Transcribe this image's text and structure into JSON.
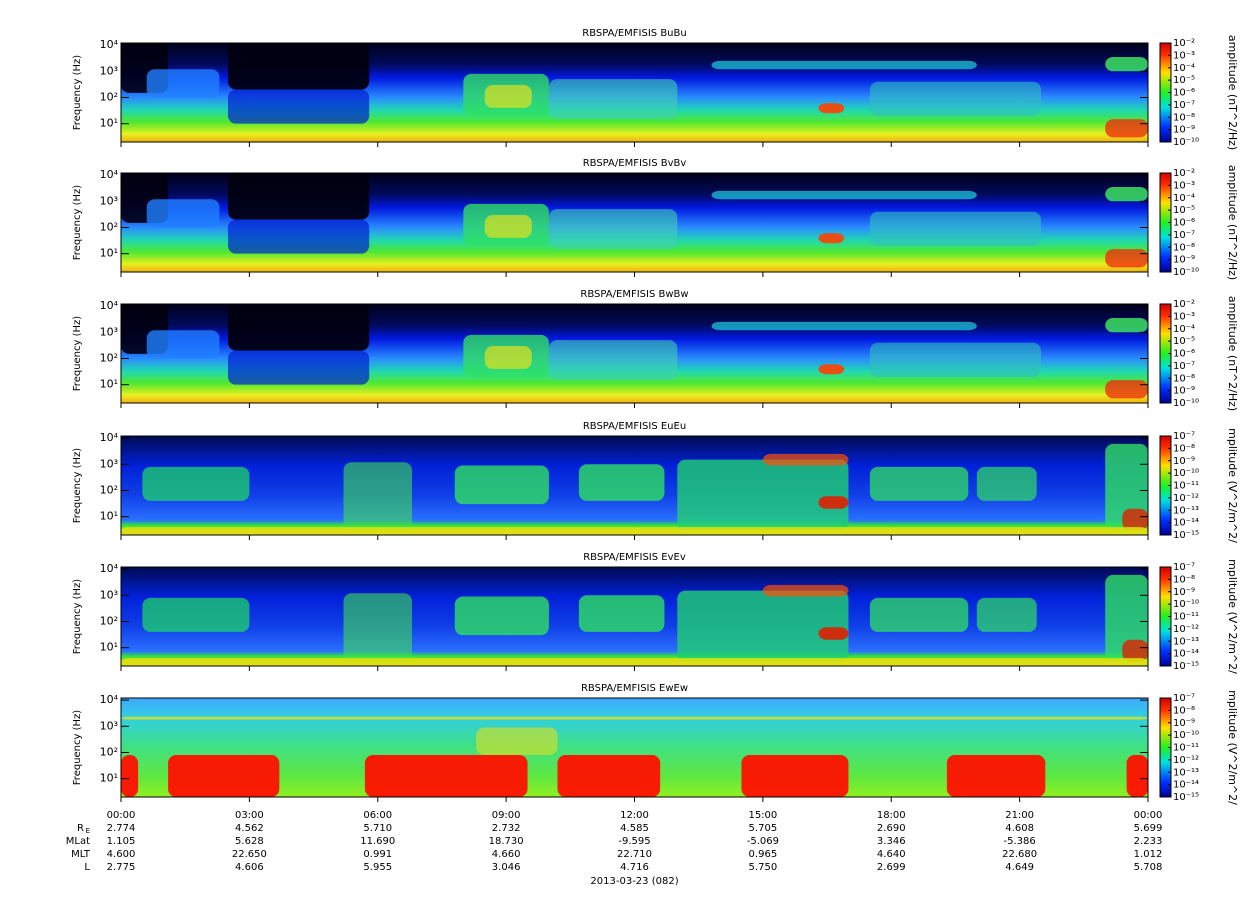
{
  "chart_data": [
    {
      "type": "spectrogram",
      "title": "RBSPA/EMFISIS  BuBu",
      "ylabel": "Frequency (Hz)",
      "log_y": true,
      "ylim": [
        2,
        12000
      ],
      "yticks": [
        {
          "value": 10,
          "label": "10¹"
        },
        {
          "value": 100,
          "label": "10²"
        },
        {
          "value": 1000,
          "label": "10³"
        },
        {
          "value": 10000,
          "label": "10⁴"
        }
      ],
      "colorbar": {
        "label": "amplitude (nT^2/Hz)",
        "lim": [
          1e-10,
          0.01
        ],
        "ticks": [
          {
            "value": 0.01,
            "label": "10⁻²"
          },
          {
            "value": 0.001,
            "label": "10⁻³"
          },
          {
            "value": 0.0001,
            "label": "10⁻⁴"
          },
          {
            "value": 1e-05,
            "label": "10⁻⁵"
          },
          {
            "value": 1e-06,
            "label": "10⁻⁶"
          },
          {
            "value": 1e-07,
            "label": "10⁻⁷"
          },
          {
            "value": 1e-08,
            "label": "10⁻⁸"
          },
          {
            "value": 1e-09,
            "label": "10⁻⁹"
          },
          {
            "value": 1e-10,
            "label": "10⁻¹⁰"
          }
        ]
      }
    },
    {
      "type": "spectrogram",
      "title": "RBSPA/EMFISIS  BvBv",
      "ylabel": "Frequency (Hz)",
      "log_y": true,
      "ylim": [
        2,
        12000
      ],
      "yticks": [
        {
          "value": 10,
          "label": "10¹"
        },
        {
          "value": 100,
          "label": "10²"
        },
        {
          "value": 1000,
          "label": "10³"
        },
        {
          "value": 10000,
          "label": "10⁴"
        }
      ],
      "colorbar": {
        "label": "amplitude (nT^2/Hz)",
        "lim": [
          1e-10,
          0.01
        ],
        "ticks": [
          {
            "value": 0.01,
            "label": "10⁻²"
          },
          {
            "value": 0.001,
            "label": "10⁻³"
          },
          {
            "value": 0.0001,
            "label": "10⁻⁴"
          },
          {
            "value": 1e-05,
            "label": "10⁻⁵"
          },
          {
            "value": 1e-06,
            "label": "10⁻⁶"
          },
          {
            "value": 1e-07,
            "label": "10⁻⁷"
          },
          {
            "value": 1e-08,
            "label": "10⁻⁸"
          },
          {
            "value": 1e-09,
            "label": "10⁻⁹"
          },
          {
            "value": 1e-10,
            "label": "10⁻¹⁰"
          }
        ]
      }
    },
    {
      "type": "spectrogram",
      "title": "RBSPA/EMFISIS  BwBw",
      "ylabel": "Frequency (Hz)",
      "log_y": true,
      "ylim": [
        2,
        12000
      ],
      "yticks": [
        {
          "value": 10,
          "label": "10¹"
        },
        {
          "value": 100,
          "label": "10²"
        },
        {
          "value": 1000,
          "label": "10³"
        },
        {
          "value": 10000,
          "label": "10⁴"
        }
      ],
      "colorbar": {
        "label": "amplitude (nT^2/Hz)",
        "lim": [
          1e-10,
          0.01
        ],
        "ticks": [
          {
            "value": 0.01,
            "label": "10⁻²"
          },
          {
            "value": 0.001,
            "label": "10⁻³"
          },
          {
            "value": 0.0001,
            "label": "10⁻⁴"
          },
          {
            "value": 1e-05,
            "label": "10⁻⁵"
          },
          {
            "value": 1e-06,
            "label": "10⁻⁶"
          },
          {
            "value": 1e-07,
            "label": "10⁻⁷"
          },
          {
            "value": 1e-08,
            "label": "10⁻⁸"
          },
          {
            "value": 1e-09,
            "label": "10⁻⁹"
          },
          {
            "value": 1e-10,
            "label": "10⁻¹⁰"
          }
        ]
      }
    },
    {
      "type": "spectrogram",
      "title": "RBSPA/EMFISIS  EuEu",
      "ylabel": "Frequency (Hz)",
      "log_y": true,
      "ylim": [
        2,
        12000
      ],
      "yticks": [
        {
          "value": 10,
          "label": "10¹"
        },
        {
          "value": 100,
          "label": "10²"
        },
        {
          "value": 1000,
          "label": "10³"
        },
        {
          "value": 10000,
          "label": "10⁴"
        }
      ],
      "colorbar": {
        "label": "mplitude (V^2/m^2/",
        "lim": [
          1e-15,
          1e-07
        ],
        "ticks": [
          {
            "value": 1e-07,
            "label": "10⁻⁷"
          },
          {
            "value": 1e-08,
            "label": "10⁻⁸"
          },
          {
            "value": 1e-09,
            "label": "10⁻⁹"
          },
          {
            "value": 1e-10,
            "label": "10⁻¹⁰"
          },
          {
            "value": 1e-11,
            "label": "10⁻¹¹"
          },
          {
            "value": 1e-12,
            "label": "10⁻¹²"
          },
          {
            "value": 1e-13,
            "label": "10⁻¹³"
          },
          {
            "value": 1e-14,
            "label": "10⁻¹⁴"
          },
          {
            "value": 1e-15,
            "label": "10⁻¹⁵"
          }
        ]
      }
    },
    {
      "type": "spectrogram",
      "title": "RBSPA/EMFISIS  EvEv",
      "ylabel": "Frequency (Hz)",
      "log_y": true,
      "ylim": [
        2,
        12000
      ],
      "yticks": [
        {
          "value": 10,
          "label": "10¹"
        },
        {
          "value": 100,
          "label": "10²"
        },
        {
          "value": 1000,
          "label": "10³"
        },
        {
          "value": 10000,
          "label": "10⁴"
        }
      ],
      "colorbar": {
        "label": "mplitude (V^2/m^2/",
        "lim": [
          1e-15,
          1e-07
        ],
        "ticks": [
          {
            "value": 1e-07,
            "label": "10⁻⁷"
          },
          {
            "value": 1e-08,
            "label": "10⁻⁸"
          },
          {
            "value": 1e-09,
            "label": "10⁻⁹"
          },
          {
            "value": 1e-10,
            "label": "10⁻¹⁰"
          },
          {
            "value": 1e-11,
            "label": "10⁻¹¹"
          },
          {
            "value": 1e-12,
            "label": "10⁻¹²"
          },
          {
            "value": 1e-13,
            "label": "10⁻¹³"
          },
          {
            "value": 1e-14,
            "label": "10⁻¹⁴"
          },
          {
            "value": 1e-15,
            "label": "10⁻¹⁵"
          }
        ]
      }
    },
    {
      "type": "spectrogram",
      "title": "RBSPA/EMFISIS  EwEw",
      "ylabel": "Frequency (Hz)",
      "log_y": true,
      "ylim": [
        2,
        12000
      ],
      "yticks": [
        {
          "value": 10,
          "label": "10¹"
        },
        {
          "value": 100,
          "label": "10²"
        },
        {
          "value": 1000,
          "label": "10³"
        },
        {
          "value": 10000,
          "label": "10⁴"
        }
      ],
      "colorbar": {
        "label": "mplitude (V^2/m^2/",
        "lim": [
          1e-15,
          1e-07
        ],
        "ticks": [
          {
            "value": 1e-07,
            "label": "10⁻⁷"
          },
          {
            "value": 1e-08,
            "label": "10⁻⁸"
          },
          {
            "value": 1e-09,
            "label": "10⁻⁹"
          },
          {
            "value": 1e-10,
            "label": "10⁻¹⁰"
          },
          {
            "value": 1e-11,
            "label": "10⁻¹¹"
          },
          {
            "value": 1e-12,
            "label": "10⁻¹²"
          },
          {
            "value": 1e-13,
            "label": "10⁻¹³"
          },
          {
            "value": 1e-14,
            "label": "10⁻¹⁴"
          },
          {
            "value": 1e-15,
            "label": "10⁻¹⁵"
          }
        ]
      }
    },
    {
      "type": "time-axis",
      "xlim": [
        0,
        24
      ],
      "xticks": [
        {
          "value": 0,
          "label": "00:00"
        },
        {
          "value": 3,
          "label": "03:00"
        },
        {
          "value": 6,
          "label": "06:00"
        },
        {
          "value": 9,
          "label": "09:00"
        },
        {
          "value": 12,
          "label": "12:00"
        },
        {
          "value": 15,
          "label": "15:00"
        },
        {
          "value": 18,
          "label": "18:00"
        },
        {
          "value": 21,
          "label": "21:00"
        },
        {
          "value": 24,
          "label": "00:00"
        }
      ],
      "xlabel": "2013-03-23 (082)",
      "ephemeris": [
        {
          "label": "R",
          "subscript": "E",
          "values": [
            "2.774",
            "4.562",
            "5.710",
            "2.732",
            "4.585",
            "5.705",
            "2.690",
            "4.608",
            "5.699"
          ]
        },
        {
          "label": "MLat",
          "values": [
            "1.105",
            "5.628",
            "11.690",
            "18.730",
            "-9.595",
            "-5.069",
            "3.346",
            "-5.386",
            "2.233"
          ]
        },
        {
          "label": "MLT",
          "values": [
            "4.600",
            "22.650",
            "0.991",
            "4.660",
            "22.710",
            "0.965",
            "4.640",
            "22.680",
            "1.012"
          ]
        },
        {
          "label": "L",
          "values": [
            "2.775",
            "4.606",
            "5.955",
            "3.046",
            "4.716",
            "5.750",
            "2.699",
            "4.649",
            "5.708"
          ]
        }
      ]
    }
  ]
}
